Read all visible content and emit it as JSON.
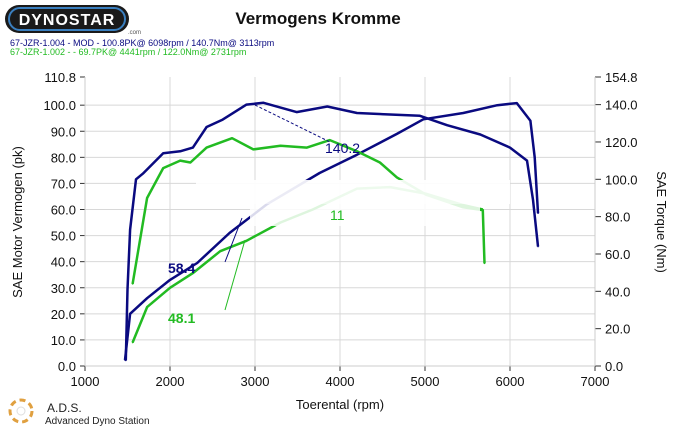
{
  "logo": {
    "brand": "DYNOSTAR",
    "suffix": ".com"
  },
  "footer_logo": {
    "abbr": "A.D.S.",
    "name": "Advanced Dyno Station"
  },
  "colors": {
    "mod": "#0a0a80",
    "stock": "#22bb22",
    "grid": "#d8d8d8"
  },
  "chart_data": {
    "type": "line",
    "title": "Vermogens Kromme",
    "xlabel": "Toerental (rpm)",
    "ylabel": "SAE Motor Vermogen (pk)",
    "y2label": "SAE Torque (Nm)",
    "xlim": [
      1000,
      7000
    ],
    "ylim": [
      0,
      110.8
    ],
    "y2lim": [
      0,
      154.8
    ],
    "grid": true,
    "xticks": [
      "1000",
      "2000",
      "3000",
      "4000",
      "5000",
      "6000",
      "7000"
    ],
    "yticks": [
      "0.0",
      "10.0",
      "20.0",
      "30.0",
      "40.0",
      "50.0",
      "60.0",
      "70.0",
      "80.0",
      "90.0",
      "100.0",
      "110.8"
    ],
    "y2ticks": [
      "0.0",
      "20.0",
      "40.0",
      "60.0",
      "80.0",
      "100.0",
      "120.0",
      "140.0",
      "154.8"
    ],
    "legend": [
      "67-JZR-1.004 - MOD  - 100.8PK@ 6098rpm / 140.7Nm@ 3113rpm",
      "67-JZR-1.002 -  - 69.7PK@ 4441rpm / 122.0Nm@ 2731rpm"
    ],
    "series": [
      {
        "name": "67-JZR-1.004 MOD power",
        "axis": "left",
        "color": "#0a0a80",
        "x": [
          1470,
          1530,
          1730,
          2000,
          2320,
          2700,
          3140,
          3760,
          4200,
          4670,
          4980,
          5450,
          5850,
          6080,
          6240,
          6290,
          6330
        ],
        "y": [
          2.3,
          20,
          26,
          33,
          39.5,
          51,
          62,
          74,
          81,
          89,
          94.6,
          97,
          100,
          100.8,
          94,
          80,
          58.6
        ]
      },
      {
        "name": "67-JZR-1.004 MOD torque",
        "axis": "right",
        "color": "#0a0a80",
        "x": [
          1480,
          1500,
          1530,
          1600,
          1680,
          1920,
          2120,
          2270,
          2430,
          2620,
          2900,
          3100,
          3490,
          3850,
          4200,
          4940,
          5260,
          5650,
          6000,
          6200,
          6270,
          6330
        ],
        "y": [
          3,
          41,
          73,
          100,
          103,
          114,
          115,
          117,
          128,
          132,
          140,
          141,
          136,
          139,
          135.5,
          134,
          129,
          124,
          117,
          110,
          89,
          64
        ]
      },
      {
        "name": "67-JZR-1.002 power",
        "axis": "left",
        "color": "#22bb22",
        "x": [
          1560,
          1730,
          2000,
          2270,
          2590,
          2900,
          3300,
          3680,
          4200,
          4590,
          5020,
          5450,
          5680
        ],
        "y": [
          9,
          22.6,
          30,
          35.6,
          44,
          48,
          55,
          60,
          68,
          68.6,
          66,
          61.7,
          60
        ]
      },
      {
        "name": "67-JZR-1.002 torque",
        "axis": "right",
        "color": "#22bb22",
        "x": [
          1560,
          1730,
          1920,
          2120,
          2240,
          2430,
          2730,
          2980,
          3300,
          3610,
          3880,
          4200,
          4470,
          4670,
          5020,
          5450,
          5680,
          5700
        ],
        "y": [
          44,
          90,
          106,
          110,
          109,
          117,
          122,
          116,
          118,
          117,
          121,
          115,
          109,
          101,
          91.6,
          85,
          83.5,
          55
        ]
      }
    ],
    "annotations": [
      {
        "text": "140.2",
        "color": "#0a0a80",
        "x": 3850,
        "y2": 120
      },
      {
        "text": "58.4",
        "color": "#0a0a80",
        "x": 2000,
        "y": 36
      },
      {
        "text": "48.1",
        "color": "#22bb22",
        "x": 2000,
        "y": 17
      },
      {
        "text": "11",
        "color": "#22bb22",
        "x": 3900,
        "y": 57
      }
    ]
  }
}
